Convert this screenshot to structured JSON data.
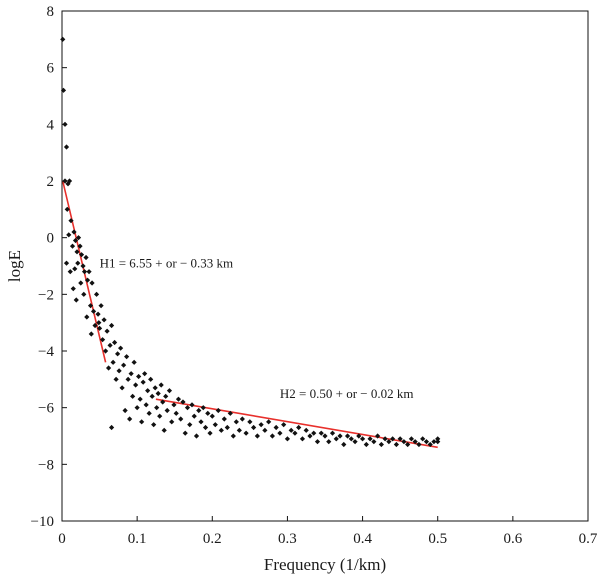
{
  "chart_data": {
    "type": "scatter",
    "title": "",
    "xlabel": "Frequency (1/km)",
    "ylabel": "logE",
    "xlim": [
      0,
      0.7
    ],
    "ylim": [
      -10,
      8
    ],
    "xticks": [
      "0",
      "0.1",
      "0.2",
      "0.3",
      "0.4",
      "0.5",
      "0.6",
      "0.7"
    ],
    "yticks": [
      "−10",
      "−8",
      "−6",
      "−4",
      "−2",
      "0",
      "2",
      "4",
      "6",
      "8"
    ],
    "grid": false,
    "point_color": "#111111",
    "fit_color": "#e8302c",
    "points": [
      [
        0.001,
        7.0
      ],
      [
        0.002,
        5.2
      ],
      [
        0.004,
        4.0
      ],
      [
        0.006,
        3.2
      ],
      [
        0.004,
        2.0
      ],
      [
        0.008,
        1.9
      ],
      [
        0.01,
        2.0
      ],
      [
        0.007,
        1.0
      ],
      [
        0.012,
        0.6
      ],
      [
        0.009,
        0.1
      ],
      [
        0.014,
        -0.3
      ],
      [
        0.006,
        -0.9
      ],
      [
        0.011,
        -1.2
      ],
      [
        0.016,
        0.2
      ],
      [
        0.018,
        -0.1
      ],
      [
        0.02,
        -0.5
      ],
      [
        0.022,
        0.0
      ],
      [
        0.024,
        -0.3
      ],
      [
        0.017,
        -1.1
      ],
      [
        0.015,
        -1.8
      ],
      [
        0.021,
        -0.9
      ],
      [
        0.026,
        -0.6
      ],
      [
        0.028,
        -1.0
      ],
      [
        0.025,
        -1.6
      ],
      [
        0.019,
        -2.2
      ],
      [
        0.03,
        -1.2
      ],
      [
        0.032,
        -0.7
      ],
      [
        0.034,
        -1.5
      ],
      [
        0.029,
        -2.0
      ],
      [
        0.036,
        -1.2
      ],
      [
        0.038,
        -2.4
      ],
      [
        0.033,
        -2.8
      ],
      [
        0.04,
        -1.6
      ],
      [
        0.042,
        -2.6
      ],
      [
        0.044,
        -3.1
      ],
      [
        0.046,
        -2.0
      ],
      [
        0.048,
        -2.7
      ],
      [
        0.039,
        -3.4
      ],
      [
        0.05,
        -3.2
      ],
      [
        0.052,
        -2.4
      ],
      [
        0.054,
        -3.6
      ],
      [
        0.056,
        -2.9
      ],
      [
        0.058,
        -4.0
      ],
      [
        0.06,
        -3.3
      ],
      [
        0.049,
        -3.0
      ],
      [
        0.062,
        -4.6
      ],
      [
        0.064,
        -3.8
      ],
      [
        0.066,
        -3.1
      ],
      [
        0.068,
        -4.4
      ],
      [
        0.07,
        -3.7
      ],
      [
        0.072,
        -5.0
      ],
      [
        0.074,
        -4.1
      ],
      [
        0.066,
        -6.7
      ],
      [
        0.076,
        -4.7
      ],
      [
        0.078,
        -3.9
      ],
      [
        0.08,
        -5.3
      ],
      [
        0.082,
        -4.5
      ],
      [
        0.084,
        -6.1
      ],
      [
        0.086,
        -4.2
      ],
      [
        0.088,
        -5.0
      ],
      [
        0.09,
        -6.4
      ],
      [
        0.092,
        -4.8
      ],
      [
        0.094,
        -5.6
      ],
      [
        0.096,
        -4.4
      ],
      [
        0.098,
        -5.2
      ],
      [
        0.1,
        -6.0
      ],
      [
        0.102,
        -4.9
      ],
      [
        0.104,
        -5.7
      ],
      [
        0.106,
        -6.5
      ],
      [
        0.108,
        -5.1
      ],
      [
        0.11,
        -4.8
      ],
      [
        0.112,
        -5.9
      ],
      [
        0.114,
        -5.4
      ],
      [
        0.116,
        -6.2
      ],
      [
        0.118,
        -5.0
      ],
      [
        0.12,
        -5.6
      ],
      [
        0.122,
        -6.6
      ],
      [
        0.124,
        -5.3
      ],
      [
        0.126,
        -6.0
      ],
      [
        0.128,
        -5.5
      ],
      [
        0.13,
        -6.3
      ],
      [
        0.132,
        -5.2
      ],
      [
        0.134,
        -5.8
      ],
      [
        0.136,
        -6.8
      ],
      [
        0.138,
        -5.6
      ],
      [
        0.14,
        -6.1
      ],
      [
        0.143,
        -5.4
      ],
      [
        0.146,
        -6.5
      ],
      [
        0.149,
        -5.9
      ],
      [
        0.152,
        -6.2
      ],
      [
        0.155,
        -5.7
      ],
      [
        0.158,
        -6.4
      ],
      [
        0.161,
        -5.8
      ],
      [
        0.164,
        -6.9
      ],
      [
        0.167,
        -6.0
      ],
      [
        0.17,
        -6.6
      ],
      [
        0.173,
        -5.9
      ],
      [
        0.176,
        -6.3
      ],
      [
        0.179,
        -7.0
      ],
      [
        0.182,
        -6.1
      ],
      [
        0.185,
        -6.5
      ],
      [
        0.188,
        -6.0
      ],
      [
        0.191,
        -6.7
      ],
      [
        0.194,
        -6.2
      ],
      [
        0.197,
        -6.9
      ],
      [
        0.2,
        -6.3
      ],
      [
        0.204,
        -6.6
      ],
      [
        0.208,
        -6.1
      ],
      [
        0.212,
        -6.8
      ],
      [
        0.216,
        -6.4
      ],
      [
        0.22,
        -6.7
      ],
      [
        0.224,
        -6.2
      ],
      [
        0.228,
        -7.0
      ],
      [
        0.232,
        -6.5
      ],
      [
        0.236,
        -6.8
      ],
      [
        0.24,
        -6.4
      ],
      [
        0.245,
        -6.9
      ],
      [
        0.25,
        -6.5
      ],
      [
        0.255,
        -6.7
      ],
      [
        0.26,
        -7.0
      ],
      [
        0.265,
        -6.6
      ],
      [
        0.27,
        -6.8
      ],
      [
        0.275,
        -6.5
      ],
      [
        0.28,
        -7.0
      ],
      [
        0.285,
        -6.7
      ],
      [
        0.29,
        -6.9
      ],
      [
        0.295,
        -6.6
      ],
      [
        0.3,
        -7.1
      ],
      [
        0.305,
        -6.8
      ],
      [
        0.31,
        -6.9
      ],
      [
        0.315,
        -6.7
      ],
      [
        0.32,
        -7.1
      ],
      [
        0.325,
        -6.8
      ],
      [
        0.33,
        -7.0
      ],
      [
        0.335,
        -6.9
      ],
      [
        0.34,
        -7.2
      ],
      [
        0.345,
        -6.9
      ],
      [
        0.35,
        -7.0
      ],
      [
        0.355,
        -7.2
      ],
      [
        0.36,
        -6.9
      ],
      [
        0.365,
        -7.1
      ],
      [
        0.37,
        -7.0
      ],
      [
        0.375,
        -7.3
      ],
      [
        0.38,
        -7.0
      ],
      [
        0.385,
        -7.1
      ],
      [
        0.39,
        -7.2
      ],
      [
        0.395,
        -7.0
      ],
      [
        0.4,
        -7.1
      ],
      [
        0.405,
        -7.3
      ],
      [
        0.41,
        -7.1
      ],
      [
        0.415,
        -7.2
      ],
      [
        0.42,
        -7.0
      ],
      [
        0.425,
        -7.3
      ],
      [
        0.43,
        -7.1
      ],
      [
        0.435,
        -7.2
      ],
      [
        0.44,
        -7.1
      ],
      [
        0.445,
        -7.3
      ],
      [
        0.45,
        -7.1
      ],
      [
        0.455,
        -7.2
      ],
      [
        0.46,
        -7.3
      ],
      [
        0.465,
        -7.1
      ],
      [
        0.47,
        -7.2
      ],
      [
        0.475,
        -7.3
      ],
      [
        0.48,
        -7.1
      ],
      [
        0.485,
        -7.2
      ],
      [
        0.49,
        -7.3
      ],
      [
        0.495,
        -7.2
      ],
      [
        0.5,
        -7.2
      ],
      [
        0.5,
        -7.1
      ]
    ],
    "fits": [
      {
        "name": "H1",
        "x": [
          0.001,
          0.058
        ],
        "y": [
          2.0,
          -4.4
        ]
      },
      {
        "name": "H2",
        "x": [
          0.125,
          0.5
        ],
        "y": [
          -5.7,
          -7.4
        ]
      }
    ],
    "annotations": [
      {
        "text": "H1 = 6.55 + or − 0.33 km",
        "x": 0.05,
        "y": -1.05
      },
      {
        "text": "H2 = 0.50 + or − 0.02 km",
        "x": 0.29,
        "y": -5.65
      }
    ]
  }
}
